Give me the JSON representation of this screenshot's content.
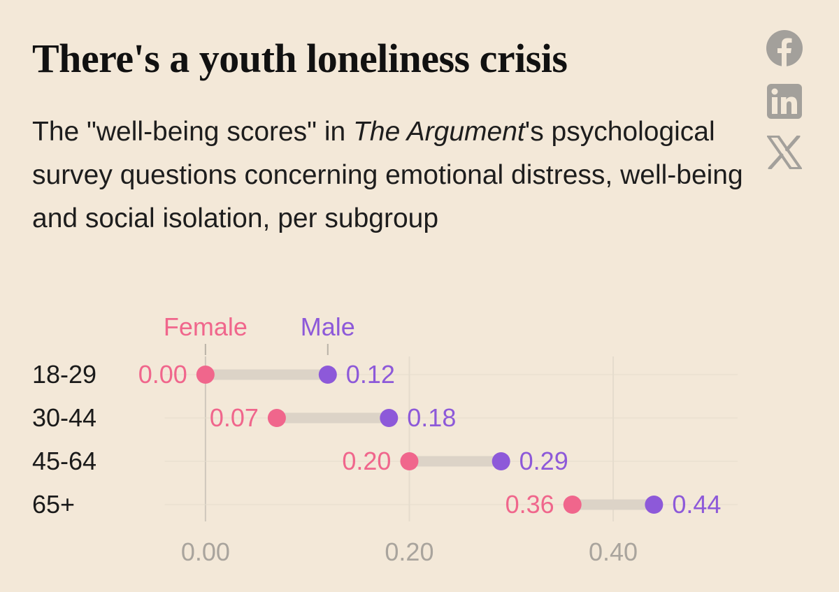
{
  "title": "There's a youth loneliness crisis",
  "subtitle": {
    "part1": "The \"well-being scores\" in ",
    "italic": "The Argument",
    "part2": "'s psychological survey questions concerning emotional distress, well-being and social isolation, per subgroup"
  },
  "share": [
    {
      "name": "facebook-icon",
      "icon": "facebook"
    },
    {
      "name": "linkedin-icon",
      "icon": "linkedin"
    },
    {
      "name": "x-icon",
      "icon": "x"
    }
  ],
  "colors": {
    "female": "#f0668c",
    "male": "#8d59d9",
    "connector": "#dcd3c7",
    "axis_text": "#a9a49d",
    "grid": "#e5dccd",
    "background": "#f3e8d8"
  },
  "chart_data": {
    "type": "dumbbell",
    "series": [
      {
        "name": "Female",
        "values": [
          0.0,
          0.07,
          0.2,
          0.36
        ]
      },
      {
        "name": "Male",
        "values": [
          0.12,
          0.18,
          0.29,
          0.44
        ]
      }
    ],
    "categories": [
      "18-29",
      "30-44",
      "45-64",
      "65+"
    ],
    "value_labels": {
      "Female": [
        "0.00",
        "0.07",
        "0.20",
        "0.36"
      ],
      "Male": [
        "0.12",
        "0.18",
        "0.29",
        "0.44"
      ]
    },
    "x_ticks": [
      0.0,
      0.2,
      0.4
    ],
    "x_tick_labels": [
      "0.00",
      "0.20",
      "0.40"
    ],
    "xlim": [
      -0.17,
      0.52
    ],
    "grid": true,
    "legend": "annotated above first row"
  }
}
